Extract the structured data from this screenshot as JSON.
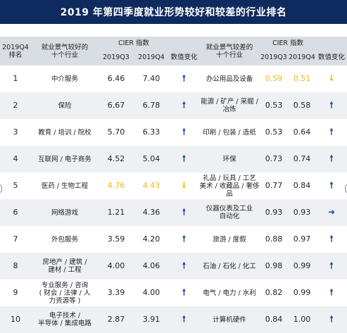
{
  "title": "2019 年第四季度就业形势较好和较差的行业排名",
  "header": {
    "rank_label": "2019Q4\n排名",
    "good_label": "就业景气较好的\n十个行业",
    "cier_label": "CIER 指数",
    "q3": "2019Q3",
    "q4": "2019Q4",
    "change": "数值变化",
    "bad_label": "就业景气较差的\n十个行业"
  },
  "rows": [
    {
      "rank": "1",
      "good": "中介服务",
      "gq3": "6.46",
      "gq4": "7.40",
      "gch": "up",
      "bad": "办公用品及设备",
      "bq3": "0.59",
      "bq4": "0.51",
      "bch": "down",
      "good_hl": false,
      "bad_hl": true
    },
    {
      "rank": "2",
      "good": "保险",
      "gq3": "6.67",
      "gq4": "6.78",
      "gch": "up",
      "bad": "能源 / 矿产 / 采掘 /\n冶炼",
      "bq3": "0.53",
      "bq4": "0.58",
      "bch": "up",
      "good_hl": false,
      "bad_hl": false
    },
    {
      "rank": "3",
      "good": "教育 / 培训 / 院校",
      "gq3": "5.70",
      "gq4": "6.33",
      "gch": "up",
      "bad": "印刷 / 包装 / 造纸",
      "bq3": "0.53",
      "bq4": "0.64",
      "bch": "up",
      "good_hl": false,
      "bad_hl": false
    },
    {
      "rank": "4",
      "good": "互联网 / 电子商务",
      "gq3": "4.52",
      "gq4": "5.04",
      "gch": "up",
      "bad": "环保",
      "bq3": "0.73",
      "bq4": "0.74",
      "bch": "up",
      "good_hl": false,
      "bad_hl": false
    },
    {
      "rank": "5",
      "good": "医药 / 生物工程",
      "gq3": "4.76",
      "gq4": "4.43",
      "gch": "down",
      "bad": "礼品 / 玩具 / 工艺\n美术 / 收藏品 / 奢侈品",
      "bq3": "0.77",
      "bq4": "0.84",
      "bch": "up",
      "good_hl": true,
      "bad_hl": false
    },
    {
      "rank": "6",
      "good": "网络游戏",
      "gq3": "1.21",
      "gq4": "4.36",
      "gch": "up",
      "bad": "仪器仪表及工业\n自动化",
      "bq3": "0.93",
      "bq4": "0.93",
      "bch": "right",
      "good_hl": false,
      "bad_hl": false
    },
    {
      "rank": "7",
      "good": "外包服务",
      "gq3": "3.59",
      "gq4": "4.20",
      "gch": "up",
      "bad": "旅游 / 度假",
      "bq3": "0.88",
      "bq4": "0.97",
      "bch": "up",
      "good_hl": false,
      "bad_hl": false
    },
    {
      "rank": "8",
      "good": "房地产 / 建筑 /\n建材 / 工程",
      "gq3": "4.00",
      "gq4": "4.06",
      "gch": "up",
      "bad": "石油 / 石化 / 化工",
      "bq3": "0.98",
      "bq4": "0.99",
      "bch": "up",
      "good_hl": false,
      "bad_hl": false
    },
    {
      "rank": "9",
      "good": "专业服务 / 咨询\n( 财会 / 法律 / 人\n力资源等 )",
      "gq3": "3.39",
      "gq4": "4.00",
      "gch": "up",
      "bad": "电气 / 电力 / 水利",
      "bq3": "0.82",
      "bq4": "0.99",
      "bch": "up",
      "good_hl": false,
      "bad_hl": false
    },
    {
      "rank": "10",
      "good": "电子技术 /\n半导体 / 集成电路",
      "gq3": "2.87",
      "gq4": "3.91",
      "gch": "up",
      "bad": "计算机硬件",
      "bq3": "0.84",
      "bq4": "1.00",
      "bch": "up",
      "good_hl": false,
      "bad_hl": false
    }
  ],
  "arrows": {
    "up": "🠕",
    "down": "🠗",
    "right": "➜"
  },
  "colors": {
    "title_bg": "#0f2a5e",
    "highlight": "#f2b90f",
    "arrow_up": "#1f4d9c",
    "header_bg": "#d9dde4"
  }
}
